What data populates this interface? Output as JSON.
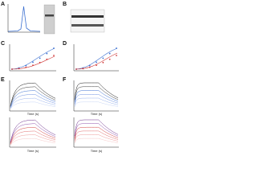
{
  "panels": [
    {
      "label": "A"
    },
    {
      "label": "B"
    },
    {
      "label": "C"
    },
    {
      "label": "D"
    },
    {
      "label": "E",
      "xlabel": "Time (s)"
    },
    {
      "label": "F",
      "xlabel": "Time (s)"
    }
  ]
}
